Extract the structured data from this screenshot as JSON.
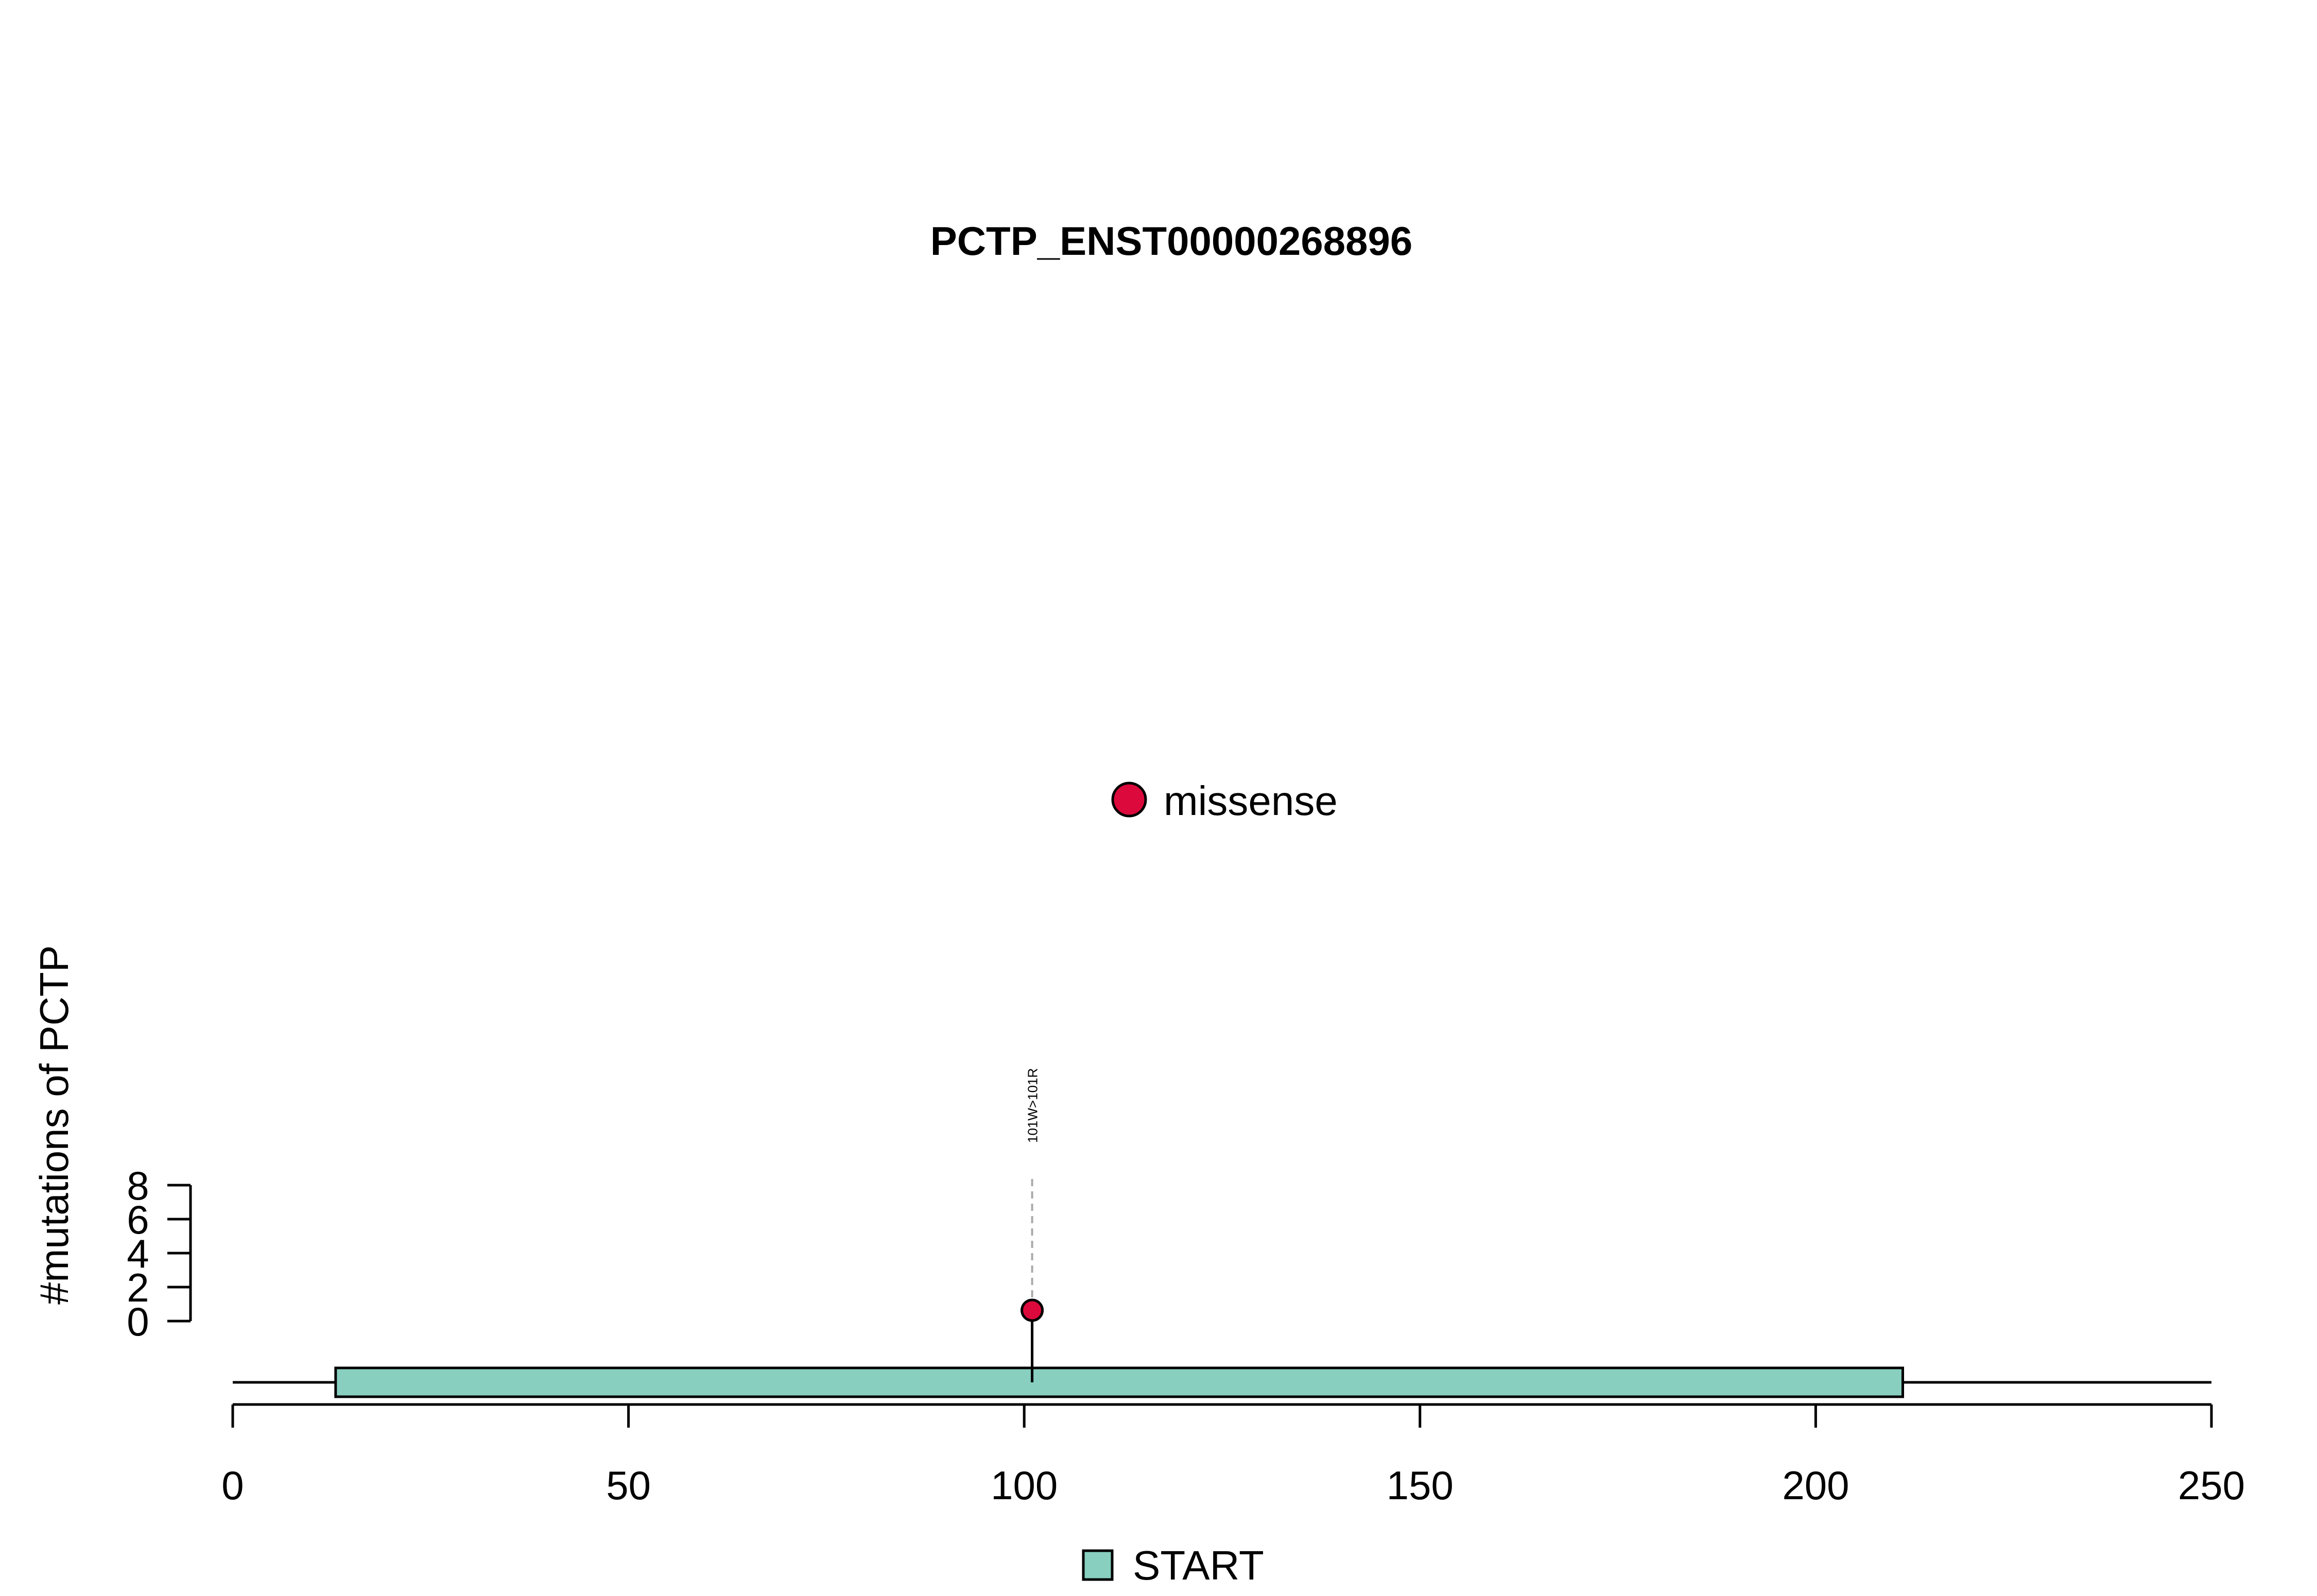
{
  "chart_data": {
    "type": "lollipop",
    "title": "PCTP_ENST00000268896",
    "xlabel": "",
    "ylabel": "#mutations of PCTP",
    "xlim": [
      0,
      250
    ],
    "x_ticks": [
      0,
      50,
      100,
      150,
      200,
      250
    ],
    "y_ticks": [
      0,
      2,
      4,
      6,
      8
    ],
    "ylim": [
      0,
      8
    ],
    "grid": false,
    "protein_length": 250,
    "domains": [
      {
        "name": "START",
        "start": 13,
        "end": 211,
        "color": "#88CFBF"
      }
    ],
    "mutations": [
      {
        "position": 101,
        "count": 1,
        "label": "101W>101R",
        "type": "missense",
        "color": "#DC0A3C"
      }
    ],
    "mutation_legend": [
      {
        "label": "missense",
        "color": "#DC0A3C",
        "placement": "center-middle"
      }
    ],
    "domain_legend": [
      {
        "label": "START",
        "color": "#88CFBF",
        "placement": "bottom-center"
      }
    ]
  }
}
